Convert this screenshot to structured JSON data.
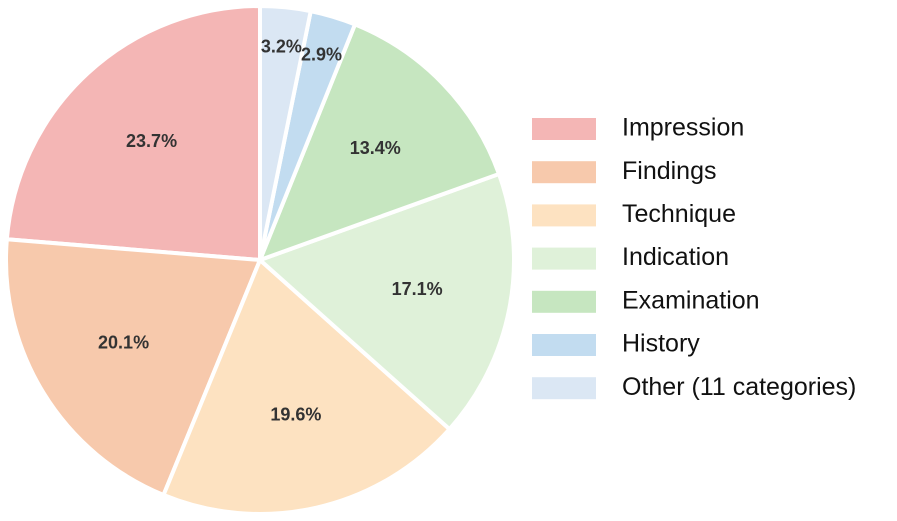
{
  "chart_data": {
    "type": "pie",
    "categories": [
      "Impression",
      "Findings",
      "Technique",
      "Indication",
      "Examination",
      "History",
      "Other (11 categories)"
    ],
    "values": [
      23.7,
      20.1,
      19.6,
      17.1,
      13.4,
      2.9,
      3.2
    ],
    "value_labels": [
      "23.7%",
      "20.1%",
      "19.6%",
      "17.1%",
      "13.4%",
      "2.9%",
      "3.2%"
    ],
    "colors": [
      "#f4b6b5",
      "#f7c9ac",
      "#fde2c1",
      "#dff1d9",
      "#c6e6c0",
      "#c2dcf0",
      "#dbe7f4"
    ],
    "legend": "right"
  }
}
